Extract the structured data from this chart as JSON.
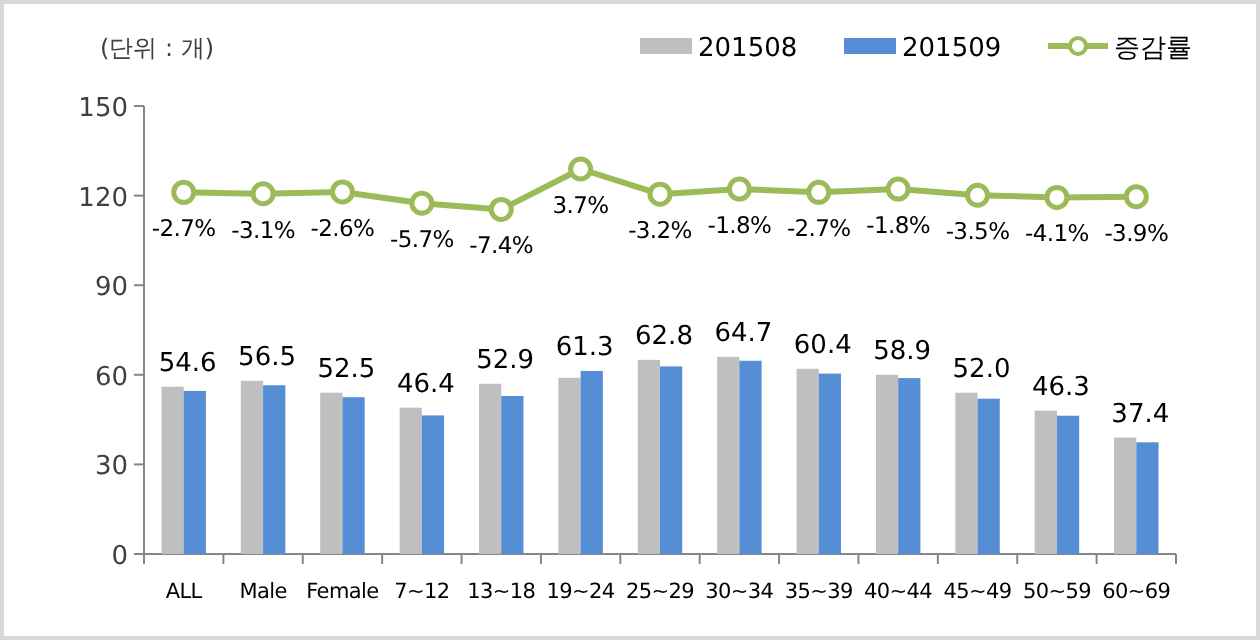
{
  "chart_data": {
    "type": "bar",
    "ylabel": "(단위 : 개)",
    "categories": [
      "ALL",
      "Male",
      "Female",
      "7~12",
      "13~18",
      "19~24",
      "25~29",
      "30~34",
      "35~39",
      "40~44",
      "45~49",
      "50~59",
      "60~69"
    ],
    "series": [
      {
        "name": "201508",
        "color": "#bfbfbf",
        "values": [
          56,
          58,
          54,
          49,
          57,
          59,
          65,
          66,
          62,
          60,
          54,
          48,
          39
        ]
      },
      {
        "name": "201509",
        "color": "#558ed5",
        "values": [
          54.6,
          56.5,
          52.5,
          46.4,
          52.9,
          61.3,
          62.8,
          64.7,
          60.4,
          58.9,
          52.0,
          46.3,
          37.4
        ],
        "value_labels": [
          "54.6",
          "56.5",
          "52.5",
          "46.4",
          "52.9",
          "61.3",
          "62.8",
          "64.7",
          "60.4",
          "58.9",
          "52.0",
          "46.3",
          "37.4"
        ]
      },
      {
        "name": "증감률",
        "type": "line",
        "axis": "y2",
        "color": "#9bbb59",
        "marker": "circle",
        "values": [
          -2.7,
          -3.1,
          -2.6,
          -5.7,
          -7.4,
          3.7,
          -3.2,
          -1.8,
          -2.7,
          -1.8,
          -3.5,
          -4.1,
          -3.9
        ],
        "value_labels": [
          "-2.7%",
          "-3.1%",
          "-2.6%",
          "-5.7%",
          "-7.4%",
          "3.7%",
          "-3.2%",
          "-1.8%",
          "-2.7%",
          "-1.8%",
          "-3.5%",
          "-4.1%",
          "-3.9%"
        ]
      }
    ],
    "ylim": [
      0,
      150
    ],
    "yticks": [
      0,
      30,
      60,
      90,
      120,
      150
    ],
    "y2lim": [
      -102,
      21
    ],
    "grid": false,
    "legend": "top right"
  }
}
